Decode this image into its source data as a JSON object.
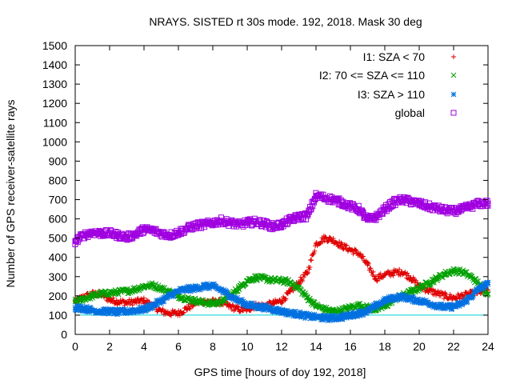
{
  "chart_data": {
    "type": "scatter",
    "title": "NRAYS. SISTED rt 30s mode. 192, 2018. Mask 30 deg",
    "xlabel": "GPS time [hours of doy 192, 2018]",
    "ylabel": "Number of GPS receiver-satellite rays",
    "xlim": [
      0,
      24
    ],
    "ylim": [
      0,
      1500
    ],
    "xticks": [
      0,
      2,
      4,
      6,
      8,
      10,
      12,
      14,
      16,
      18,
      20,
      22,
      24
    ],
    "yticks": [
      0,
      100,
      200,
      300,
      400,
      500,
      600,
      700,
      800,
      900,
      1000,
      1100,
      1200,
      1300,
      1400,
      1500
    ],
    "legend_position": "top-right",
    "reference_line": {
      "y": 100,
      "color": "#00d0d0"
    },
    "series": [
      {
        "name": "I1: SZA < 70",
        "marker": "+",
        "color": "#e00000",
        "x": [
          0,
          0.5,
          1,
          1.5,
          2,
          2.5,
          3,
          3.5,
          4,
          4.5,
          5,
          5.5,
          6,
          6.5,
          7,
          7.5,
          8,
          8.5,
          9,
          9.5,
          10,
          10.5,
          11,
          11.5,
          12,
          12.5,
          13,
          13.5,
          14,
          14.5,
          15,
          15.5,
          16,
          16.5,
          17,
          17.5,
          18,
          18.5,
          19,
          19.5,
          20,
          20.5,
          21,
          21.5,
          22,
          22.5,
          23,
          23.5,
          24
        ],
        "values": [
          170,
          195,
          210,
          210,
          180,
          170,
          165,
          170,
          175,
          150,
          120,
          110,
          110,
          135,
          165,
          170,
          170,
          165,
          145,
          130,
          130,
          150,
          150,
          160,
          175,
          220,
          270,
          320,
          470,
          500,
          490,
          460,
          440,
          420,
          360,
          290,
          310,
          320,
          325,
          295,
          250,
          230,
          215,
          200,
          190,
          200,
          210,
          220,
          230
        ]
      },
      {
        "name": "I2: 70 <= SZA <= 110",
        "marker": "x",
        "color": "#00a000",
        "x": [
          0,
          0.5,
          1,
          1.5,
          2,
          2.5,
          3,
          3.5,
          4,
          4.5,
          5,
          5.5,
          6,
          6.5,
          7,
          7.5,
          8,
          8.5,
          9,
          9.5,
          10,
          10.5,
          11,
          11.5,
          12,
          12.5,
          13,
          13.5,
          14,
          14.5,
          15,
          15.5,
          16,
          16.5,
          17,
          17.5,
          18,
          18.5,
          19,
          19.5,
          20,
          20.5,
          21,
          21.5,
          22,
          22.5,
          23,
          23.5,
          24
        ],
        "values": [
          170,
          185,
          200,
          210,
          215,
          220,
          225,
          235,
          250,
          255,
          240,
          220,
          200,
          185,
          175,
          165,
          160,
          170,
          200,
          240,
          280,
          295,
          290,
          280,
          280,
          270,
          240,
          190,
          150,
          130,
          120,
          125,
          140,
          150,
          140,
          130,
          145,
          180,
          200,
          220,
          240,
          265,
          290,
          315,
          330,
          325,
          300,
          260,
          210
        ]
      },
      {
        "name": "I3: SZA > 110",
        "marker": "*",
        "color": "#0070e0",
        "x": [
          0,
          0.5,
          1,
          1.5,
          2,
          2.5,
          3,
          3.5,
          4,
          4.5,
          5,
          5.5,
          6,
          6.5,
          7,
          7.5,
          8,
          8.5,
          9,
          9.5,
          10,
          10.5,
          11,
          11.5,
          12,
          12.5,
          13,
          13.5,
          14,
          14.5,
          15,
          15.5,
          16,
          16.5,
          17,
          17.5,
          18,
          18.5,
          19,
          19.5,
          20,
          20.5,
          21,
          21.5,
          22,
          22.5,
          23,
          23.5,
          24
        ],
        "values": [
          140,
          135,
          125,
          120,
          120,
          115,
          120,
          125,
          130,
          150,
          175,
          200,
          225,
          235,
          240,
          250,
          250,
          230,
          200,
          175,
          155,
          145,
          140,
          130,
          120,
          110,
          105,
          95,
          90,
          85,
          85,
          90,
          100,
          110,
          120,
          150,
          175,
          190,
          195,
          185,
          175,
          165,
          150,
          140,
          145,
          160,
          195,
          240,
          260
        ]
      },
      {
        "name": "global",
        "marker": "square",
        "color": "#a000e0",
        "x": [
          0,
          0.5,
          1,
          1.5,
          2,
          2.5,
          3,
          3.5,
          4,
          4.5,
          5,
          5.5,
          6,
          6.5,
          7,
          7.5,
          8,
          8.5,
          9,
          9.5,
          10,
          10.5,
          11,
          11.5,
          12,
          12.5,
          13,
          13.5,
          14,
          14.5,
          15,
          15.5,
          16,
          16.5,
          17,
          17.5,
          18,
          18.5,
          19,
          19.5,
          20,
          20.5,
          21,
          21.5,
          22,
          22.5,
          23,
          23.5,
          24
        ],
        "values": [
          485,
          515,
          530,
          525,
          525,
          515,
          505,
          520,
          545,
          540,
          525,
          515,
          530,
          550,
          565,
          570,
          580,
          590,
          580,
          570,
          580,
          585,
          575,
          560,
          570,
          595,
          610,
          615,
          720,
          710,
          700,
          685,
          665,
          650,
          595,
          610,
          650,
          685,
          700,
          690,
          680,
          665,
          655,
          645,
          640,
          650,
          665,
          680,
          680
        ]
      }
    ]
  }
}
